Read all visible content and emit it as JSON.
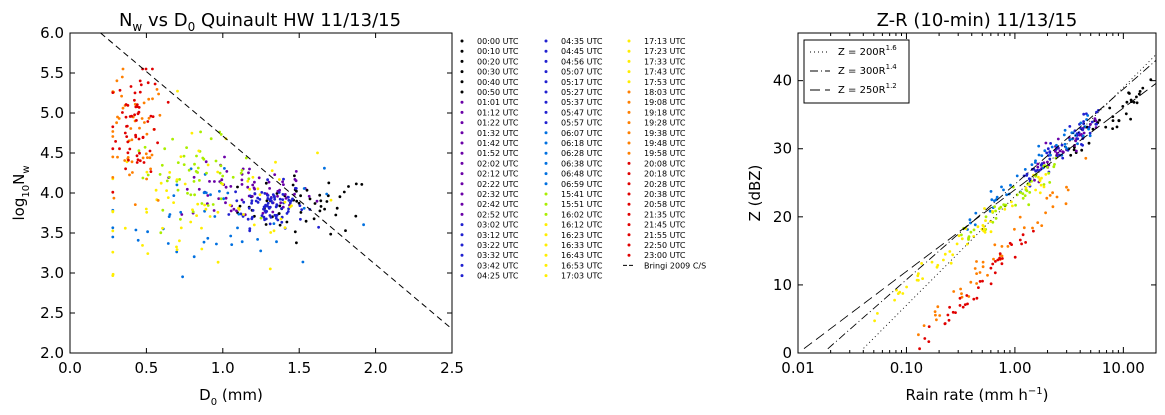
{
  "chart_data": [
    {
      "type": "scatter",
      "title": "Nw vs D0 Quinault HW 11/13/15",
      "title_parts": {
        "a": "N",
        "a_sub": "w",
        "b": " vs D",
        "b_sub": "0",
        "c": " Quinault HW 11/13/15"
      },
      "xlabel": "D0 (mm)",
      "xlabel_parts": {
        "a": "D",
        "a_sub": "0",
        "b": " (mm)"
      },
      "ylabel": "log10Nw",
      "ylabel_parts": {
        "a": "log",
        "a_sub": "10",
        "b": "N",
        "b_sub": "w"
      },
      "xlim": [
        0.0,
        2.5
      ],
      "ylim": [
        2.0,
        6.0
      ],
      "xticks": [
        "0.0",
        "0.5",
        "1.0",
        "1.5",
        "2.0",
        "2.5"
      ],
      "yticks": [
        "2.0",
        "2.5",
        "3.0",
        "3.5",
        "4.0",
        "4.5",
        "5.0",
        "5.5",
        "6.0"
      ],
      "grid": false,
      "reference_line": {
        "name": "Bringi 2009 C/S",
        "style": "dashed",
        "color": "#000000",
        "points": [
          [
            0.2,
            6.0
          ],
          [
            2.5,
            2.3
          ]
        ]
      },
      "clusters": [
        {
          "group": "night",
          "color": "#000000",
          "cx": 1.55,
          "cy": 3.85,
          "sx": 0.22,
          "sy": 0.18,
          "n": 55
        },
        {
          "group": "early",
          "color": "#6a00a8",
          "cx": 1.15,
          "cy": 4.0,
          "sx": 0.22,
          "sy": 0.18,
          "n": 70
        },
        {
          "group": "late-night",
          "color": "#2020d0",
          "cx": 1.3,
          "cy": 3.85,
          "sx": 0.12,
          "sy": 0.14,
          "n": 90
        },
        {
          "group": "morning",
          "color": "#0070e0",
          "cx": 0.95,
          "cy": 3.7,
          "sx": 0.35,
          "sy": 0.35,
          "n": 45
        },
        {
          "group": "afternoon-green",
          "color": "#aaee00",
          "cx": 0.8,
          "cy": 4.25,
          "sx": 0.2,
          "sy": 0.22,
          "n": 55
        },
        {
          "group": "afternoon-yellow",
          "color": "#ffee00",
          "cx": 0.9,
          "cy": 3.8,
          "sx": 0.45,
          "sy": 0.45,
          "n": 70
        },
        {
          "group": "evening-orange",
          "color": "#ff7f00",
          "cx": 0.4,
          "cy": 4.6,
          "sx": 0.12,
          "sy": 0.45,
          "n": 50
        },
        {
          "group": "night-red",
          "color": "#e00000",
          "cx": 0.45,
          "cy": 4.9,
          "sx": 0.08,
          "sy": 0.35,
          "n": 60
        }
      ]
    },
    {
      "type": "scatter",
      "title": "Z-R (10-min) 11/13/15",
      "xlabel": "Rain rate (mm h-1)",
      "xlabel_parts": {
        "a": "Rain rate (mm h",
        "a_sup": "−1",
        "b": ")"
      },
      "ylabel": "Z (dBZ)",
      "xscale": "log",
      "xlim": [
        0.01,
        20
      ],
      "ylim": [
        0,
        47
      ],
      "xticks": [
        {
          "v": 0.01,
          "label": "0.01"
        },
        {
          "v": 0.1,
          "label": "0.10"
        },
        {
          "v": 1,
          "label": "1.00"
        },
        {
          "v": 10,
          "label": "10.00"
        }
      ],
      "yticks": [
        "0",
        "10",
        "20",
        "30",
        "40"
      ],
      "grid": false,
      "legend_position": "top-left",
      "legend": [
        {
          "label": "Z = 200R1.6",
          "base": "Z = 200R",
          "exp": "1.6",
          "a": 200,
          "b": 1.6,
          "dash": "1,3"
        },
        {
          "label": "Z = 300R1.4",
          "base": "Z = 300R",
          "exp": "1.4",
          "a": 300,
          "b": 1.4,
          "dash": "8,3,1,3"
        },
        {
          "label": "Z = 250R1.2",
          "base": "Z = 250R",
          "exp": "1.2",
          "a": 250,
          "b": 1.2,
          "dash": "10,5"
        }
      ],
      "clusters": [
        {
          "group": "convective",
          "a": 250,
          "b": 1.2,
          "off": 0.0,
          "color": "#000000",
          "lo": 3,
          "hi": 18,
          "n": 40
        },
        {
          "group": "purple",
          "a": 250,
          "b": 1.3,
          "off": 0.0,
          "color": "#6a00a8",
          "lo": 1.5,
          "hi": 6,
          "n": 40
        },
        {
          "group": "blue",
          "a": 250,
          "b": 1.3,
          "off": 0.5,
          "color": "#2020d0",
          "lo": 1.2,
          "hi": 6,
          "n": 55
        },
        {
          "group": "light-blue",
          "a": 250,
          "b": 1.3,
          "off": 1.0,
          "color": "#0070e0",
          "lo": 0.3,
          "hi": 5,
          "n": 50
        },
        {
          "group": "green",
          "a": 250,
          "b": 1.3,
          "off": -1.0,
          "color": "#aaee00",
          "lo": 0.3,
          "hi": 2.5,
          "n": 45
        },
        {
          "group": "yellow",
          "a": 250,
          "b": 1.3,
          "off": -1.5,
          "color": "#ffee00",
          "lo": 0.05,
          "hi": 2,
          "n": 55
        },
        {
          "group": "orange",
          "a": 200,
          "b": 1.6,
          "off": -6.0,
          "color": "#ff7f00",
          "lo": 0.1,
          "hi": 5,
          "n": 45
        },
        {
          "group": "red",
          "a": 200,
          "b": 1.6,
          "off": -8.0,
          "color": "#e00000",
          "lo": 0.05,
          "hi": 1.5,
          "n": 55
        }
      ]
    }
  ],
  "legend_times": {
    "columns": [
      {
        "color_runs": [
          {
            "color": "#000000",
            "labels": [
              "00:00 UTC",
              "00:10 UTC",
              "00:20 UTC",
              "00:30 UTC",
              "00:40 UTC",
              "00:50 UTC"
            ]
          },
          {
            "color": "#6a00a8",
            "labels": [
              "01:01 UTC",
              "01:12 UTC",
              "01:22 UTC",
              "01:32 UTC",
              "01:42 UTC",
              "01:52 UTC",
              "02:02 UTC",
              "02:12 UTC",
              "02:22 UTC",
              "02:32 UTC",
              "02:42 UTC",
              "02:52 UTC"
            ]
          },
          {
            "color": "#2020d0",
            "labels": [
              "03:02 UTC",
              "03:12 UTC",
              "03:22 UTC",
              "03:32 UTC",
              "03:42 UTC",
              "04:25 UTC"
            ]
          }
        ]
      },
      {
        "color_runs": [
          {
            "color": "#2020d0",
            "labels": [
              "04:35 UTC",
              "04:45 UTC",
              "04:56 UTC",
              "05:07 UTC",
              "05:17 UTC",
              "05:27 UTC",
              "05:37 UTC",
              "05:47 UTC",
              "05:57 UTC"
            ]
          },
          {
            "color": "#0070e0",
            "labels": [
              "06:07 UTC",
              "06:18 UTC",
              "06:28 UTC",
              "06:38 UTC",
              "06:48 UTC",
              "06:59 UTC"
            ]
          },
          {
            "color": "#aaee00",
            "labels": [
              "15:41 UTC",
              "15:51 UTC",
              "16:02 UTC"
            ]
          },
          {
            "color": "#ffee00",
            "labels": [
              "16:12 UTC",
              "16:23 UTC",
              "16:33 UTC",
              "16:43 UTC",
              "16:53 UTC",
              "17:03 UTC"
            ]
          }
        ]
      },
      {
        "color_runs": [
          {
            "color": "#ffee00",
            "labels": [
              "17:13 UTC",
              "17:23 UTC",
              "17:33 UTC",
              "17:43 UTC",
              "17:53 UTC"
            ]
          },
          {
            "color": "#ff7f00",
            "labels": [
              "18:03 UTC",
              "19:08 UTC",
              "19:18 UTC",
              "19:28 UTC",
              "19:38 UTC",
              "19:48 UTC",
              "19:58 UTC"
            ]
          },
          {
            "color": "#e00000",
            "labels": [
              "20:08 UTC",
              "20:18 UTC",
              "20:28 UTC",
              "20:38 UTC",
              "20:58 UTC",
              "21:35 UTC",
              "21:45 UTC",
              "21:55 UTC",
              "22:50 UTC",
              "23:00 UTC"
            ]
          }
        ]
      }
    ],
    "line_entry": {
      "label": "Bringi 2009 C/S",
      "style": "dashed"
    }
  }
}
